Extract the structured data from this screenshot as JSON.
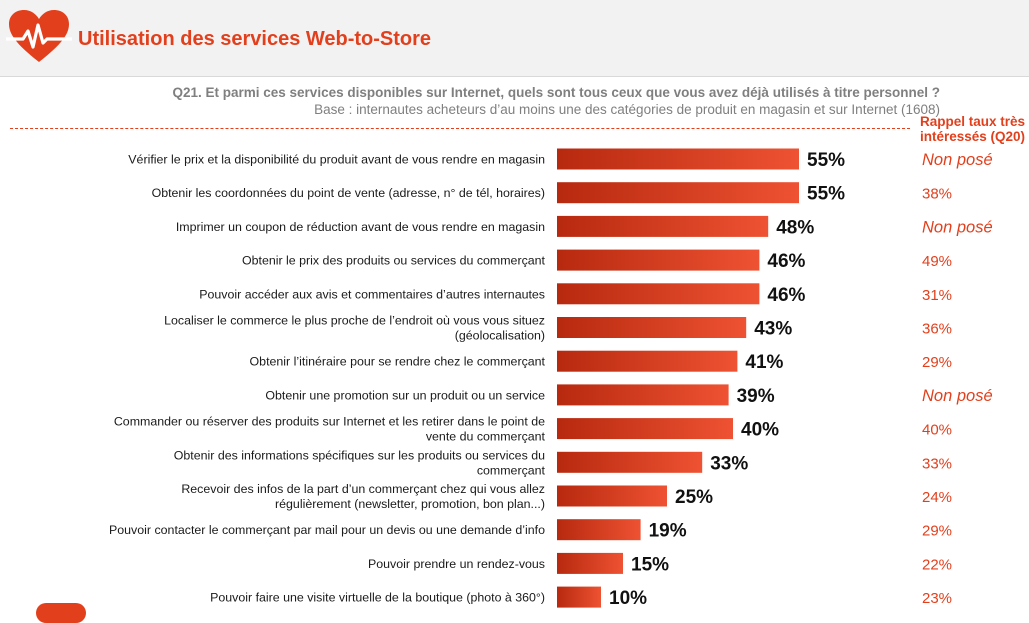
{
  "header": {
    "title": "Utilisation des services Web-to-Store",
    "question": "Q21. Et parmi ces services disponibles sur Internet, quels sont tous ceux que vous avez déjà utilisés à titre personnel ?",
    "base": "Base : internautes acheteurs d’au moins une des catégories de produit en magasin et sur Internet (1608)",
    "rappel_line1": "Rappel taux très",
    "rappel_line2": "intéressés (Q20)"
  },
  "colors": {
    "accent": "#e2401d",
    "bar_dark": "#b7290f",
    "bar_light": "#ee5232"
  },
  "chart_data": {
    "type": "bar",
    "orientation": "horizontal",
    "value_suffix": "%",
    "categories": [
      [
        "Vérifier le prix et la disponibilité du produit avant de vous rendre en magasin"
      ],
      [
        "Obtenir les coordonnées du point de vente (adresse, n° de tél, horaires)"
      ],
      [
        "Imprimer un coupon de réduction avant de vous rendre en magasin"
      ],
      [
        "Obtenir le prix des produits ou services du commerçant"
      ],
      [
        "Pouvoir accéder aux avis et commentaires d’autres internautes"
      ],
      [
        "Localiser le commerce le plus proche de l’endroit où vous vous situez",
        "(géolocalisation)"
      ],
      [
        "Obtenir l’itinéraire pour se rendre chez le commerçant"
      ],
      [
        "Obtenir une promotion sur un produit ou un service"
      ],
      [
        "Commander ou réserver des produits sur Internet et les retirer dans le point de",
        "vente du commerçant"
      ],
      [
        "Obtenir des informations spécifiques sur les produits ou services du",
        "commerçant"
      ],
      [
        "Recevoir des infos de la part d’un commerçant chez qui vous allez",
        "régulièrement (newsletter, promotion, bon plan...)"
      ],
      [
        "Pouvoir contacter le commerçant par mail pour un devis ou une demande d’info"
      ],
      [
        "Pouvoir prendre un rendez-vous"
      ],
      [
        "Pouvoir faire une visite virtuelle de la boutique (photo à 360°)"
      ]
    ],
    "values": [
      55,
      55,
      48,
      46,
      46,
      43,
      41,
      39,
      40,
      33,
      25,
      19,
      15,
      10
    ],
    "rappel": [
      "Non posé",
      "38%",
      "Non posé",
      "49%",
      "31%",
      "36%",
      "29%",
      "Non posé",
      "40%",
      "33%",
      "24%",
      "29%",
      "22%",
      "23%"
    ],
    "xlim": [
      0,
      100
    ]
  }
}
